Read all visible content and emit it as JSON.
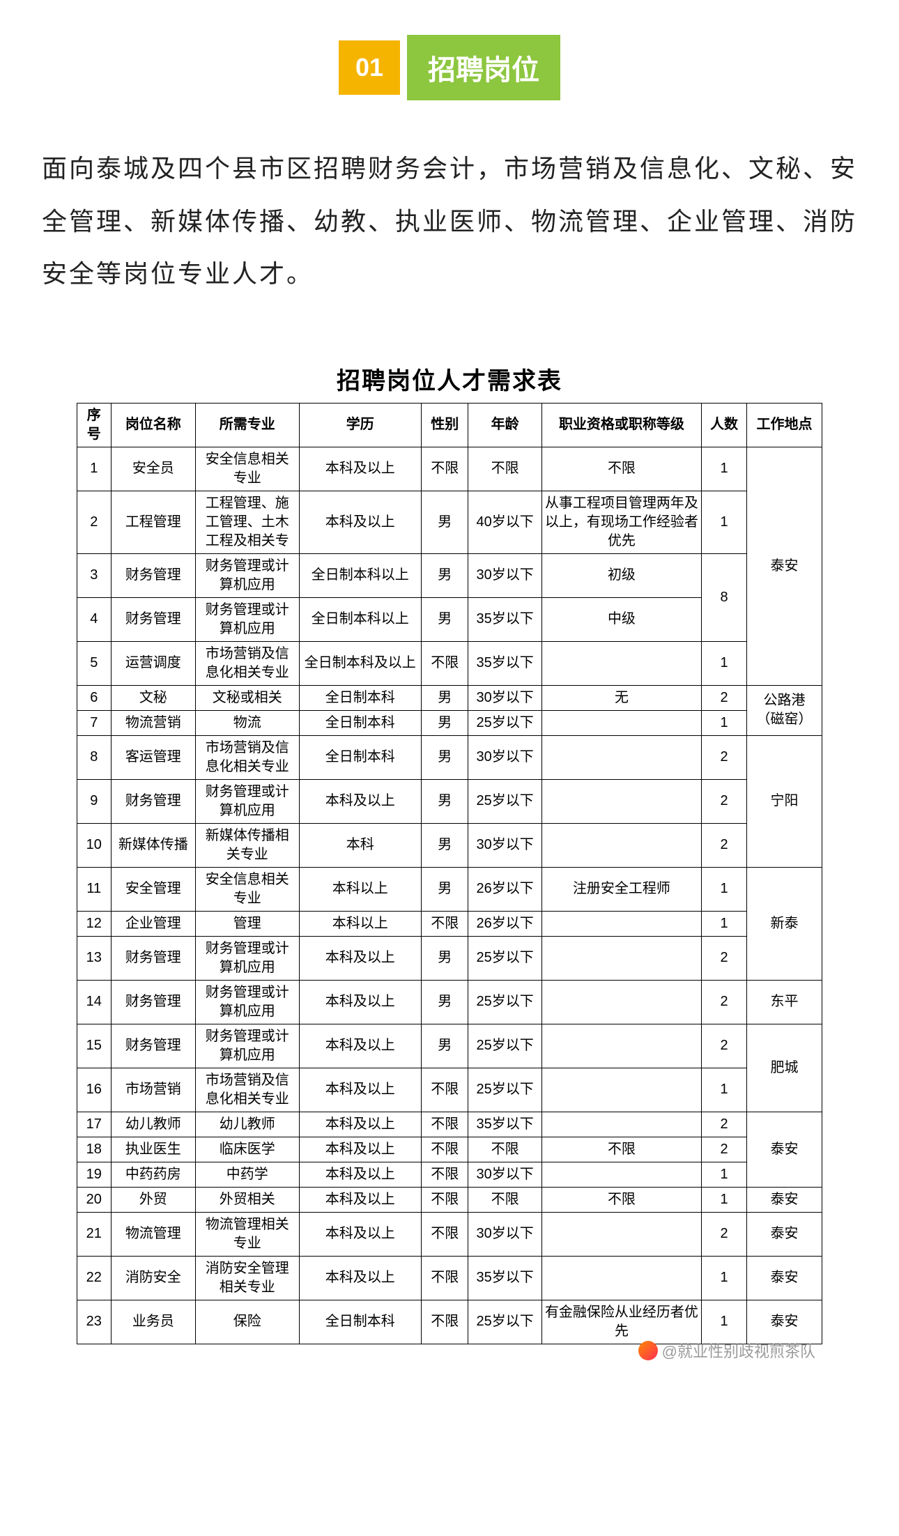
{
  "header": {
    "number": "01",
    "title": "招聘岗位",
    "number_bg": "#f5b400",
    "title_bg": "#8dc63f",
    "corner_color": "#2a7de1"
  },
  "intro": "面向泰城及四个县市区招聘财务会计，市场营销及信息化、文秘、安全管理、新媒体传播、幼教、执业医师、物流管理、企业管理、消防安全等岗位专业人才。",
  "table": {
    "title": "招聘岗位人才需求表",
    "columns": [
      "序号",
      "岗位名称",
      "所需专业",
      "学历",
      "性别",
      "年龄",
      "职业资格或职称等级",
      "人数",
      "工作地点"
    ],
    "rows": [
      {
        "seq": "1",
        "name": "安全员",
        "major": "安全信息相关专业",
        "edu": "本科及以上",
        "gender": "不限",
        "age": "不限",
        "qual": "不限",
        "count": "1"
      },
      {
        "seq": "2",
        "name": "工程管理",
        "major": "工程管理、施工管理、土木工程及相关专",
        "edu": "本科及以上",
        "gender": "男",
        "age": "40岁以下",
        "qual": "从事工程项目管理两年及以上，有现场工作经验者优先",
        "count": "1"
      },
      {
        "seq": "3",
        "name": "财务管理",
        "major": "财务管理或计算机应用",
        "edu": "全日制本科以上",
        "gender": "男",
        "age": "30岁以下",
        "qual": "初级"
      },
      {
        "seq": "4",
        "name": "财务管理",
        "major": "财务管理或计算机应用",
        "edu": "全日制本科以上",
        "gender": "男",
        "age": "35岁以下",
        "qual": "中级"
      },
      {
        "seq": "5",
        "name": "运营调度",
        "major": "市场营销及信息化相关专业",
        "edu": "全日制本科及以上",
        "gender": "不限",
        "age": "35岁以下",
        "qual": "",
        "count": "1"
      },
      {
        "seq": "6",
        "name": "文秘",
        "major": "文秘或相关",
        "edu": "全日制本科",
        "gender": "男",
        "age": "30岁以下",
        "qual": "无",
        "count": "2"
      },
      {
        "seq": "7",
        "name": "物流营销",
        "major": "物流",
        "edu": "全日制本科",
        "gender": "男",
        "age": "25岁以下",
        "qual": "",
        "count": "1"
      },
      {
        "seq": "8",
        "name": "客运管理",
        "major": "市场营销及信息化相关专业",
        "edu": "全日制本科",
        "gender": "男",
        "age": "30岁以下",
        "qual": "",
        "count": "2"
      },
      {
        "seq": "9",
        "name": "财务管理",
        "major": "财务管理或计算机应用",
        "edu": "本科及以上",
        "gender": "男",
        "age": "25岁以下",
        "qual": "",
        "count": "2"
      },
      {
        "seq": "10",
        "name": "新媒体传播",
        "major": "新媒体传播相关专业",
        "edu": "本科",
        "gender": "男",
        "age": "30岁以下",
        "qual": "",
        "count": "2"
      },
      {
        "seq": "11",
        "name": "安全管理",
        "major": "安全信息相关专业",
        "edu": "本科以上",
        "gender": "男",
        "age": "26岁以下",
        "qual": "注册安全工程师",
        "count": "1"
      },
      {
        "seq": "12",
        "name": "企业管理",
        "major": "管理",
        "edu": "本科以上",
        "gender": "不限",
        "age": "26岁以下",
        "qual": "",
        "count": "1"
      },
      {
        "seq": "13",
        "name": "财务管理",
        "major": "财务管理或计算机应用",
        "edu": "本科及以上",
        "gender": "男",
        "age": "25岁以下",
        "qual": "",
        "count": "2"
      },
      {
        "seq": "14",
        "name": "财务管理",
        "major": "财务管理或计算机应用",
        "edu": "本科及以上",
        "gender": "男",
        "age": "25岁以下",
        "qual": "",
        "count": "2"
      },
      {
        "seq": "15",
        "name": "财务管理",
        "major": "财务管理或计算机应用",
        "edu": "本科及以上",
        "gender": "男",
        "age": "25岁以下",
        "qual": "",
        "count": "2"
      },
      {
        "seq": "16",
        "name": "市场营销",
        "major": "市场营销及信息化相关专业",
        "edu": "本科及以上",
        "gender": "不限",
        "age": "25岁以下",
        "qual": "",
        "count": "1"
      },
      {
        "seq": "17",
        "name": "幼儿教师",
        "major": "幼儿教师",
        "edu": "本科及以上",
        "gender": "不限",
        "age": "35岁以下",
        "qual": "",
        "count": "2"
      },
      {
        "seq": "18",
        "name": "执业医生",
        "major": "临床医学",
        "edu": "本科及以上",
        "gender": "不限",
        "age": "不限",
        "qual": "不限",
        "count": "2"
      },
      {
        "seq": "19",
        "name": "中药药房",
        "major": "中药学",
        "edu": "本科及以上",
        "gender": "不限",
        "age": "30岁以下",
        "qual": "",
        "count": "1"
      },
      {
        "seq": "20",
        "name": "外贸",
        "major": "外贸相关",
        "edu": "本科及以上",
        "gender": "不限",
        "age": "不限",
        "qual": "不限",
        "count": "1"
      },
      {
        "seq": "21",
        "name": "物流管理",
        "major": "物流管理相关专业",
        "edu": "本科及以上",
        "gender": "不限",
        "age": "30岁以下",
        "qual": "",
        "count": "2"
      },
      {
        "seq": "22",
        "name": "消防安全",
        "major": "消防安全管理相关专业",
        "edu": "本科及以上",
        "gender": "不限",
        "age": "35岁以下",
        "qual": "",
        "count": "1"
      },
      {
        "seq": "23",
        "name": "业务员",
        "major": "保险",
        "edu": "全日制本科",
        "gender": "不限",
        "age": "25岁以下",
        "qual": "有金融保险从业经历者优先",
        "count": "1"
      }
    ],
    "merged_count_34": "8",
    "locations": {
      "loc_1_5": "泰安",
      "loc_6_7": "公路港（磁窑）",
      "loc_8_10": "宁阳",
      "loc_11_13": "新泰",
      "loc_14": "东平",
      "loc_15_16": "肥城",
      "loc_17_19": "泰安",
      "loc_20": "泰安",
      "loc_21": "泰安",
      "loc_22": "泰安",
      "loc_23": "泰安"
    }
  },
  "watermark": "@就业性别歧视煎茶队"
}
